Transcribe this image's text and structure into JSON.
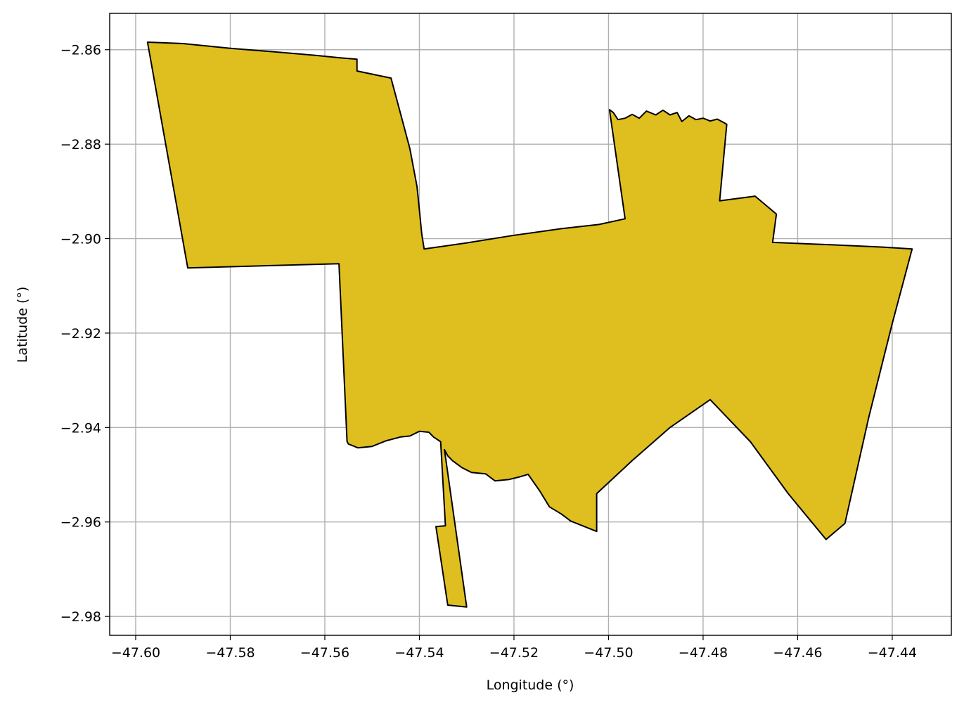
{
  "chart_data": {
    "type": "map",
    "xlabel": "Longitude (°)",
    "ylabel": "Latitude (°)",
    "xlim": [
      -47.6055,
      -47.4275
    ],
    "ylim": [
      -2.984,
      -2.8523
    ],
    "grid": true,
    "x_ticks": [
      -47.6,
      -47.58,
      -47.56,
      -47.54,
      -47.52,
      -47.5,
      -47.48,
      -47.46,
      -47.44
    ],
    "x_tick_labels": [
      "−47.60",
      "−47.58",
      "−47.56",
      "−47.54",
      "−47.52",
      "−47.50",
      "−47.48",
      "−47.46",
      "−47.44"
    ],
    "y_ticks": [
      -2.86,
      -2.88,
      -2.9,
      -2.92,
      -2.94,
      -2.96,
      -2.98
    ],
    "y_tick_labels": [
      "−2.86",
      "−2.88",
      "−2.90",
      "−2.92",
      "−2.94",
      "−2.96",
      "−2.98"
    ],
    "fill_color": "#dfbe1f",
    "edge_color": "#000000",
    "boundary": [
      [
        -47.5975,
        -2.8584
      ],
      [
        -47.59,
        -2.8587
      ],
      [
        -47.58,
        -2.8597
      ],
      [
        -47.57,
        -2.8605
      ],
      [
        -47.562,
        -2.8612
      ],
      [
        -47.5568,
        -2.8617
      ],
      [
        -47.5532,
        -2.862
      ],
      [
        -47.5532,
        -2.8645
      ],
      [
        -47.546,
        -2.866
      ],
      [
        -47.544,
        -2.8735
      ],
      [
        -47.542,
        -2.881
      ],
      [
        -47.5405,
        -2.889
      ],
      [
        -47.54,
        -2.894
      ],
      [
        -47.5395,
        -2.899
      ],
      [
        -47.539,
        -2.9022
      ],
      [
        -47.53,
        -2.9009
      ],
      [
        -47.52,
        -2.8993
      ],
      [
        -47.51,
        -2.8979
      ],
      [
        -47.502,
        -2.897
      ],
      [
        -47.4965,
        -2.8958
      ],
      [
        -47.4998,
        -2.8727
      ],
      [
        -47.499,
        -2.8733
      ],
      [
        -47.498,
        -2.8748
      ],
      [
        -47.4965,
        -2.8745
      ],
      [
        -47.495,
        -2.8737
      ],
      [
        -47.4935,
        -2.8745
      ],
      [
        -47.492,
        -2.873
      ],
      [
        -47.49,
        -2.8738
      ],
      [
        -47.4885,
        -2.8728
      ],
      [
        -47.487,
        -2.8738
      ],
      [
        -47.4855,
        -2.8733
      ],
      [
        -47.4845,
        -2.8752
      ],
      [
        -47.483,
        -2.874
      ],
      [
        -47.4815,
        -2.8748
      ],
      [
        -47.48,
        -2.8745
      ],
      [
        -47.4785,
        -2.8751
      ],
      [
        -47.477,
        -2.8747
      ],
      [
        -47.4755,
        -2.8755
      ],
      [
        -47.475,
        -2.8758
      ],
      [
        -47.4765,
        -2.892
      ],
      [
        -47.469,
        -2.891
      ],
      [
        -47.4645,
        -2.8948
      ],
      [
        -47.4653,
        -2.9008
      ],
      [
        -47.453,
        -2.9013
      ],
      [
        -47.442,
        -2.9018
      ],
      [
        -47.4358,
        -2.9022
      ],
      [
        -47.44,
        -2.918
      ],
      [
        -47.445,
        -2.938
      ],
      [
        -47.45,
        -2.9603
      ],
      [
        -47.454,
        -2.9637
      ],
      [
        -47.462,
        -2.954
      ],
      [
        -47.47,
        -2.943
      ],
      [
        -47.4785,
        -2.9341
      ],
      [
        -47.487,
        -2.94
      ],
      [
        -47.495,
        -2.947
      ],
      [
        -47.5025,
        -2.954
      ],
      [
        -47.5025,
        -2.962
      ],
      [
        -47.508,
        -2.9598
      ],
      [
        -47.51,
        -2.9583
      ],
      [
        -47.5125,
        -2.9568
      ],
      [
        -47.5145,
        -2.9535
      ],
      [
        -47.517,
        -2.9499
      ],
      [
        -47.519,
        -2.9505
      ],
      [
        -47.521,
        -2.951
      ],
      [
        -47.524,
        -2.9513
      ],
      [
        -47.526,
        -2.9498
      ],
      [
        -47.529,
        -2.9495
      ],
      [
        -47.531,
        -2.9485
      ],
      [
        -47.533,
        -2.947
      ],
      [
        -47.534,
        -2.946
      ],
      [
        -47.5347,
        -2.9447
      ],
      [
        -47.53,
        -2.978
      ],
      [
        -47.534,
        -2.9776
      ],
      [
        -47.5365,
        -2.961
      ],
      [
        -47.5345,
        -2.9608
      ],
      [
        -47.5355,
        -2.943
      ],
      [
        -47.537,
        -2.942
      ],
      [
        -47.538,
        -2.941
      ],
      [
        -47.54,
        -2.9408
      ],
      [
        -47.542,
        -2.9418
      ],
      [
        -47.544,
        -2.942
      ],
      [
        -47.547,
        -2.9428
      ],
      [
        -47.55,
        -2.944
      ],
      [
        -47.553,
        -2.9443
      ],
      [
        -47.555,
        -2.9435
      ],
      [
        -47.5553,
        -2.943
      ],
      [
        -47.557,
        -2.9053
      ],
      [
        -47.589,
        -2.9062
      ],
      [
        -47.5975,
        -2.8584
      ]
    ]
  }
}
